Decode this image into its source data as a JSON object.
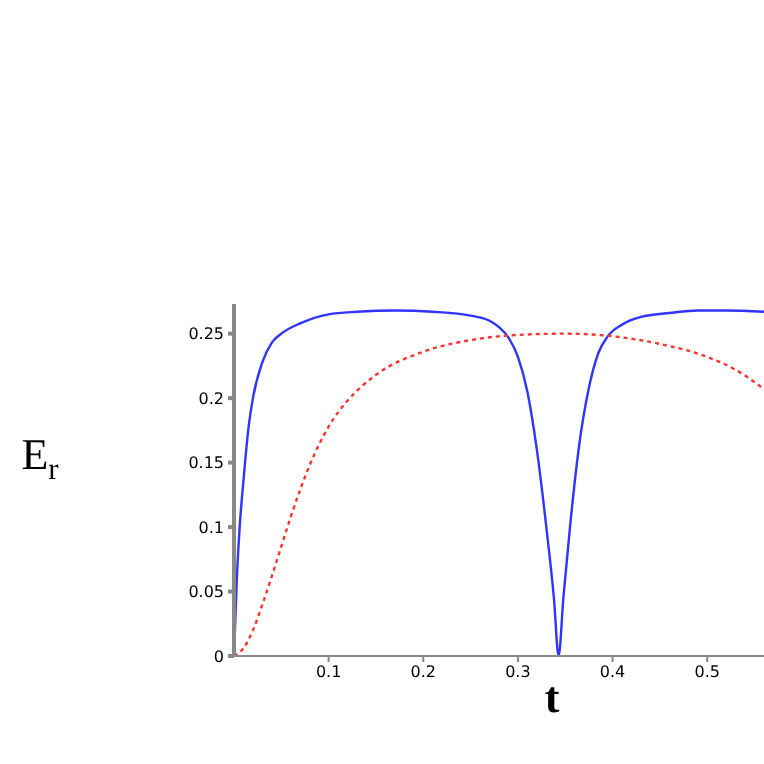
{
  "chart_data": {
    "type": "line",
    "xlabel": "t",
    "ylabel": "E$_{r}$",
    "xlim": [
      0,
      0.56
    ],
    "ylim": [
      0,
      0.273
    ],
    "xticks": [
      0.1,
      0.2,
      0.3,
      0.4,
      0.5
    ],
    "yticks": [
      0,
      0.05,
      0.1,
      0.15,
      0.2,
      0.25
    ],
    "grid": false,
    "legend": false,
    "marker": "none",
    "series": [
      {
        "color": "#3333ff",
        "line_style": "solid",
        "x": [
          0,
          0.003,
          0.006,
          0.01,
          0.015,
          0.02,
          0.03,
          0.04,
          0.05,
          0.07,
          0.1,
          0.13,
          0.17,
          0.21,
          0.25,
          0.27,
          0.28,
          0.29,
          0.3,
          0.31,
          0.32,
          0.33,
          0.338,
          0.343,
          0.348,
          0.355,
          0.365,
          0.375,
          0.385,
          0.395,
          0.41,
          0.43,
          0.46,
          0.49,
          0.52,
          0.56
        ],
        "values": [
          0,
          0.06,
          0.1,
          0.136,
          0.175,
          0.2,
          0.228,
          0.243,
          0.25,
          0.258,
          0.265,
          0.267,
          0.268,
          0.267,
          0.264,
          0.26,
          0.255,
          0.247,
          0.232,
          0.205,
          0.16,
          0.1,
          0.045,
          0,
          0.045,
          0.1,
          0.165,
          0.208,
          0.235,
          0.248,
          0.257,
          0.263,
          0.266,
          0.268,
          0.268,
          0.267
        ]
      },
      {
        "color": "#ff3333",
        "line_style": "dotted",
        "x": [
          0,
          0.01,
          0.02,
          0.03,
          0.04,
          0.05,
          0.06,
          0.08,
          0.1,
          0.12,
          0.15,
          0.2,
          0.25,
          0.3,
          0.35,
          0.4,
          0.45,
          0.5,
          0.53,
          0.56
        ],
        "values": [
          0,
          0.006,
          0.02,
          0.04,
          0.062,
          0.085,
          0.108,
          0.148,
          0.178,
          0.198,
          0.218,
          0.236,
          0.245,
          0.249,
          0.25,
          0.248,
          0.242,
          0.232,
          0.222,
          0.207
        ]
      }
    ]
  }
}
